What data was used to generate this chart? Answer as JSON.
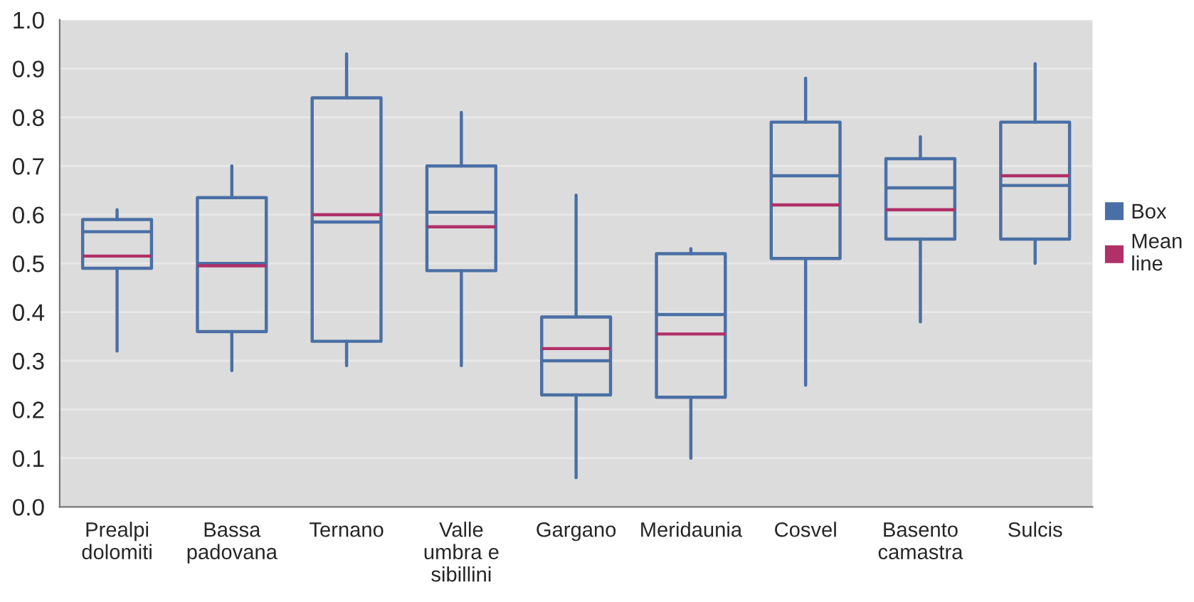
{
  "chart_data": {
    "type": "box",
    "categories": [
      "Prealpi\ndolomiti",
      "Bassa\npadovana",
      "Ternano",
      "Valle\numbra e\nsibillini",
      "Gargano",
      "Meridaunia",
      "Cosvel",
      "Basento\ncamastra",
      "Sulcis"
    ],
    "series": [
      {
        "name": "Box",
        "color": "#4a6fa5",
        "boxes": [
          {
            "low": 0.32,
            "q1": 0.49,
            "median": 0.565,
            "q3": 0.59,
            "high": 0.61,
            "mean": 0.515
          },
          {
            "low": 0.28,
            "q1": 0.36,
            "median": 0.5,
            "q3": 0.635,
            "high": 0.7,
            "mean": 0.495
          },
          {
            "low": 0.29,
            "q1": 0.34,
            "median": 0.585,
            "q3": 0.84,
            "high": 0.93,
            "mean": 0.6
          },
          {
            "low": 0.29,
            "q1": 0.485,
            "median": 0.605,
            "q3": 0.7,
            "high": 0.81,
            "mean": 0.575
          },
          {
            "low": 0.06,
            "q1": 0.23,
            "median": 0.3,
            "q3": 0.39,
            "high": 0.64,
            "mean": 0.325
          },
          {
            "low": 0.1,
            "q1": 0.225,
            "median": 0.395,
            "q3": 0.52,
            "high": 0.53,
            "mean": 0.355
          },
          {
            "low": 0.25,
            "q1": 0.51,
            "median": 0.68,
            "q3": 0.79,
            "high": 0.88,
            "mean": 0.62
          },
          {
            "low": 0.38,
            "q1": 0.55,
            "median": 0.655,
            "q3": 0.715,
            "high": 0.76,
            "mean": 0.61
          },
          {
            "low": 0.5,
            "q1": 0.55,
            "median": 0.66,
            "q3": 0.79,
            "high": 0.91,
            "mean": 0.68
          }
        ]
      }
    ],
    "annotations": [
      "Mean line"
    ],
    "ylim": [
      0,
      1.0
    ],
    "yticks": [
      {
        "value": 0,
        "label": "0.0"
      },
      0.1,
      0.2,
      0.3,
      0.4,
      0.5,
      0.6,
      0.7,
      0.8,
      0.9,
      {
        "value": 1.0,
        "label": "1.0"
      }
    ],
    "grid": "y",
    "legend": "right"
  }
}
